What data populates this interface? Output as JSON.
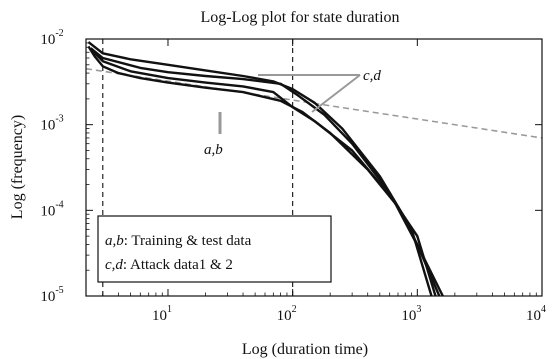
{
  "chart_data": {
    "type": "line",
    "title": "Log-Log plot for state duration",
    "xlabel": "Log (duration time)",
    "ylabel": "Log (frequency)",
    "x_scale": "log",
    "y_scale": "log",
    "xlim": [
      2.2,
      10000
    ],
    "ylim": [
      1e-05,
      0.01
    ],
    "x_ticks": [
      {
        "value": 10,
        "base": "10",
        "exp": "1"
      },
      {
        "value": 100,
        "base": "10",
        "exp": "2"
      },
      {
        "value": 1000,
        "base": "10",
        "exp": "3"
      },
      {
        "value": 10000,
        "base": "10",
        "exp": "4"
      }
    ],
    "y_ticks": [
      {
        "value": 1e-05,
        "base": "10",
        "exp": "-5"
      },
      {
        "value": 0.0001,
        "base": "10",
        "exp": "-4"
      },
      {
        "value": 0.001,
        "base": "10",
        "exp": "-3"
      },
      {
        "value": 0.01,
        "base": "10",
        "exp": "-2"
      }
    ],
    "reference_lines": [
      {
        "orientation": "vertical",
        "x": 3,
        "style": "dashed"
      },
      {
        "orientation": "vertical",
        "x": 100,
        "style": "dashed"
      },
      {
        "orientation": "fit",
        "style": "dashed",
        "color": "#999999",
        "points": [
          [
            2.2,
            0.0045
          ],
          [
            10000,
            0.0007
          ]
        ]
      }
    ],
    "series": [
      {
        "id": "a",
        "color": "#111111",
        "points": [
          [
            2.3,
            0.0082
          ],
          [
            2.6,
            0.0062
          ],
          [
            3,
            0.0048
          ],
          [
            4,
            0.004
          ],
          [
            6,
            0.0035
          ],
          [
            10,
            0.0031
          ],
          [
            20,
            0.0027
          ],
          [
            40,
            0.0024
          ],
          [
            80,
            0.0019
          ],
          [
            120,
            0.0014
          ],
          [
            200,
            0.0008
          ],
          [
            400,
            0.0003
          ],
          [
            700,
            0.00011
          ],
          [
            1000,
            4e-05
          ],
          [
            1500,
            1e-05
          ]
        ]
      },
      {
        "id": "b",
        "color": "#111111",
        "points": [
          [
            2.5,
            0.0072
          ],
          [
            3,
            0.0055
          ],
          [
            5,
            0.0042
          ],
          [
            10,
            0.0035
          ],
          [
            20,
            0.0031
          ],
          [
            40,
            0.0028
          ],
          [
            70,
            0.0024
          ],
          [
            100,
            0.0016
          ],
          [
            150,
            0.0011
          ],
          [
            300,
            0.0005
          ],
          [
            600,
            0.00015
          ],
          [
            1000,
            5e-05
          ],
          [
            1400,
            1e-05
          ]
        ]
      },
      {
        "id": "c",
        "color": "#111111",
        "points": [
          [
            2.3,
            0.0092
          ],
          [
            3,
            0.0068
          ],
          [
            5,
            0.0058
          ],
          [
            10,
            0.005
          ],
          [
            20,
            0.0043
          ],
          [
            40,
            0.0037
          ],
          [
            70,
            0.0032
          ],
          [
            100,
            0.0026
          ],
          [
            150,
            0.0018
          ],
          [
            250,
            0.0009
          ],
          [
            500,
            0.00025
          ],
          [
            900,
            6e-05
          ],
          [
            1300,
            1e-05
          ]
        ]
      },
      {
        "id": "d",
        "color": "#111111",
        "points": [
          [
            2.4,
            0.0078
          ],
          [
            3,
            0.006
          ],
          [
            6,
            0.0046
          ],
          [
            10,
            0.0041
          ],
          [
            20,
            0.0037
          ],
          [
            40,
            0.0034
          ],
          [
            80,
            0.003
          ],
          [
            110,
            0.0022
          ],
          [
            180,
            0.0013
          ],
          [
            300,
            0.0006
          ],
          [
            600,
            0.00016
          ],
          [
            1100,
            3e-05
          ],
          [
            1600,
            1e-05
          ]
        ]
      }
    ],
    "annotations": [
      {
        "text": "c,d",
        "target": "upper curves"
      },
      {
        "text": "a,b",
        "target": "lower curves"
      }
    ],
    "legend": {
      "placement": "bottom-left",
      "entries": [
        {
          "ids": "a,b",
          "text": ": Training & test data"
        },
        {
          "ids": "c,d",
          "text": ": Attack data1 & 2"
        }
      ]
    },
    "grid": false
  }
}
